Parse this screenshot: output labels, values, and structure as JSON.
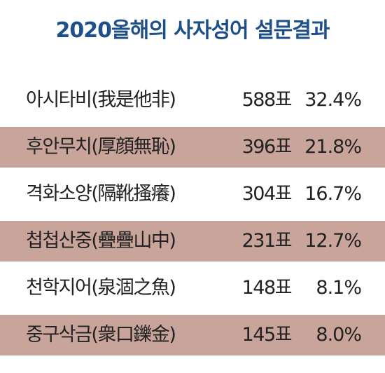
{
  "title": "2020올해의 사자성어 설문결과",
  "rows": [
    {
      "name": "아시타비(我是他非)",
      "votes": "588표",
      "percent": "32.4%",
      "shaded": false
    },
    {
      "name": "후안무치(厚顔無恥)",
      "votes": "396표",
      "percent": "21.8%",
      "shaded": true
    },
    {
      "name": "격화소양(隔靴搔癢)",
      "votes": "304표",
      "percent": "16.7%",
      "shaded": false
    },
    {
      "name": "첩첩산중(疊疊山中)",
      "votes": "231표",
      "percent": "12.7%",
      "shaded": true
    },
    {
      "name": "천학지어(泉涸之魚)",
      "votes": "148표",
      "percent": "8.1%",
      "shaded": false
    },
    {
      "name": "중구삭금(衆口鑠金)",
      "votes": "145표",
      "percent": "8.0%",
      "shaded": true
    }
  ],
  "colors": {
    "title": "#1d4f88",
    "shaded_row": "#c9a49b",
    "text": "#222222",
    "background": "#ffffff"
  }
}
